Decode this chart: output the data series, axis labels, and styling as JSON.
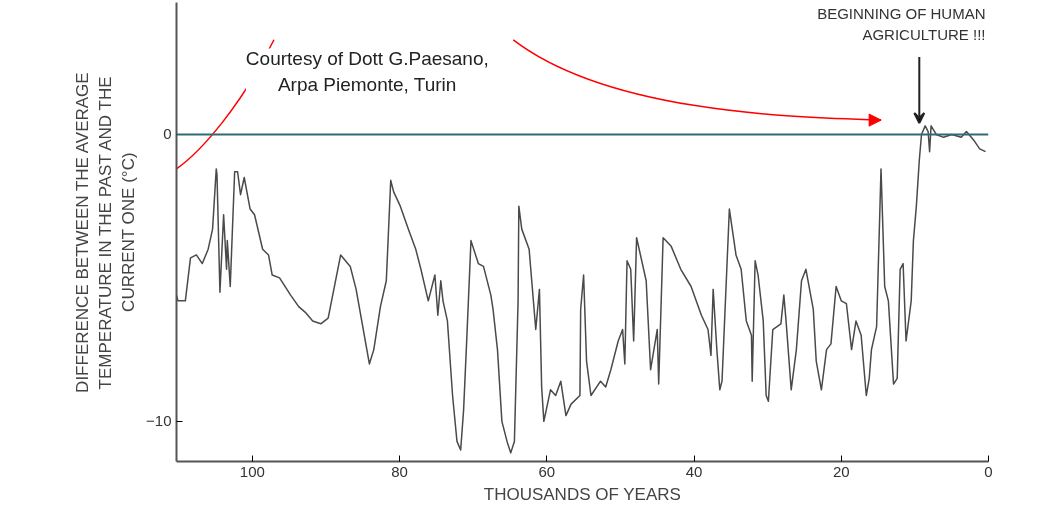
{
  "chart_data": {
    "type": "line",
    "xlabel": "THOUSANDS OF YEARS",
    "ylabel": "DIFFERENCE BETWEEN THE AVERAGE TEMPERATURE IN THE PAST AND THE CURRENT ONE (°C)",
    "x": [
      110.3,
      110.1,
      109.1,
      108.4,
      107.6,
      106.8,
      106.0,
      105.4,
      104.9,
      104.8,
      104.4,
      103.9,
      103.5,
      103.4,
      103.0,
      102.4,
      102.0,
      101.6,
      101.1,
      100.3,
      99.7,
      98.6,
      97.8,
      97.3,
      96.3,
      94.8,
      93.7,
      92.8,
      91.8,
      90.7,
      89.7,
      88.0,
      86.7,
      85.9,
      84.1,
      83.5,
      82.6,
      81.8,
      81.2,
      80.8,
      79.9,
      78.8,
      77.8,
      77.1,
      76.1,
      75.2,
      74.8,
      74.4,
      74.1,
      73.5,
      72.8,
      72.2,
      71.7,
      71.3,
      70.9,
      70.3,
      69.3,
      68.6,
      67.6,
      67.3,
      66.7,
      66.1,
      65.4,
      64.9,
      64.4,
      63.9,
      63.8,
      63.4,
      62.4,
      61.5,
      61.0,
      60.7,
      60.4,
      59.5,
      58.8,
      58.1,
      57.4,
      56.7,
      55.5,
      55.4,
      55.0,
      54.6,
      54.0,
      52.7,
      52.0,
      51.3,
      50.3,
      49.7,
      49.4,
      49.1,
      48.6,
      48.2,
      47.8,
      46.5,
      45.9,
      45.0,
      44.8,
      44.2,
      43.1,
      41.8,
      40.4,
      39.0,
      38.1,
      37.7,
      37.4,
      36.9,
      36.5,
      36.2,
      35.2,
      34.3,
      33.6,
      32.9,
      32.2,
      32.1,
      31.7,
      31.3,
      30.6,
      30.2,
      29.9,
      29.3,
      28.2,
      27.8,
      27.5,
      26.8,
      26.1,
      25.4,
      24.8,
      23.8,
      23.4,
      22.7,
      22.0,
      21.4,
      20.7,
      20.0,
      19.3,
      18.6,
      18.0,
      17.3,
      16.6,
      16.2,
      15.9,
      15.2,
      14.6,
      14.1,
      13.6,
      12.9,
      12.4,
      12.0,
      11.6,
      11.2,
      10.5,
      10.2,
      9.8,
      9.4,
      9.1,
      8.6,
      8.2,
      8.0,
      7.8,
      7.1,
      6.1,
      5.0,
      3.7,
      3.0,
      2.0,
      1.2,
      0.4
    ],
    "series": [
      {
        "color": "#4a4a4a",
        "values": [
          -5.6,
          -5.8,
          -5.8,
          -4.3,
          -4.2,
          -4.5,
          -4.0,
          -3.3,
          -1.2,
          -1.4,
          -5.5,
          -2.8,
          -4.7,
          -3.7,
          -5.3,
          -1.3,
          -1.3,
          -2.1,
          -1.5,
          -2.6,
          -2.8,
          -4.0,
          -4.2,
          -4.9,
          -5.0,
          -5.6,
          -6.0,
          -6.2,
          -6.5,
          -6.6,
          -6.4,
          -4.2,
          -4.6,
          -5.4,
          -8.0,
          -7.5,
          -6.0,
          -5.1,
          -1.6,
          -2.0,
          -2.5,
          -3.3,
          -4.0,
          -4.7,
          -5.8,
          -4.9,
          -6.3,
          -5.1,
          -5.8,
          -6.5,
          -9.1,
          -10.7,
          -11.0,
          -9.6,
          -7.3,
          -3.7,
          -4.5,
          -4.6,
          -5.6,
          -6.1,
          -7.5,
          -10.0,
          -10.7,
          -11.1,
          -10.7,
          -5.8,
          -2.5,
          -3.3,
          -4.0,
          -6.8,
          -5.4,
          -8.8,
          -10.0,
          -8.9,
          -9.1,
          -8.6,
          -9.8,
          -9.4,
          -9.1,
          -6.1,
          -4.9,
          -7.9,
          -9.1,
          -8.6,
          -8.8,
          -8.2,
          -7.2,
          -6.8,
          -8.0,
          -4.4,
          -4.7,
          -7.2,
          -3.6,
          -5.1,
          -8.2,
          -6.8,
          -8.7,
          -3.6,
          -3.9,
          -4.7,
          -5.3,
          -6.3,
          -6.8,
          -7.7,
          -5.4,
          -7.5,
          -8.9,
          -8.6,
          -2.6,
          -4.2,
          -4.7,
          -6.5,
          -7.0,
          -8.6,
          -4.4,
          -4.9,
          -6.5,
          -9.1,
          -9.3,
          -6.8,
          -6.6,
          -5.6,
          -6.5,
          -8.9,
          -7.5,
          -5.1,
          -4.7,
          -6.1,
          -7.9,
          -8.9,
          -7.5,
          -7.3,
          -5.3,
          -5.8,
          -5.9,
          -7.5,
          -6.5,
          -7.0,
          -9.1,
          -8.5,
          -7.5,
          -6.7,
          -1.2,
          -5.3,
          -5.8,
          -8.7,
          -8.5,
          -4.7,
          -4.5,
          -7.2,
          -5.8,
          -3.7,
          -2.5,
          -0.9,
          0.0,
          0.3,
          0.1,
          -0.6,
          0.3,
          0.0,
          -0.1,
          0.0,
          -0.1,
          0.1,
          -0.2,
          -0.5,
          -0.6
        ]
      }
    ],
    "xlim": [
      110.3,
      0
    ],
    "ylim": [
      -11.4,
      4.6
    ],
    "xticks": [
      100,
      80,
      60,
      40,
      20,
      0
    ],
    "yticks": [
      0,
      -10
    ],
    "grid": false,
    "marker": "none",
    "line_style": "solid",
    "ref_lines": [
      {
        "axis": "y",
        "value": 0,
        "color": "#2f6b75"
      }
    ],
    "annotations": [
      "Courtesy of Dott G.Paesano, Arpa Piemonte, Turin",
      {
        "text": "BEGINNING OF HUMAN AGRICULTURE !!!",
        "x": 9.4,
        "y": 0.3
      }
    ]
  }
}
